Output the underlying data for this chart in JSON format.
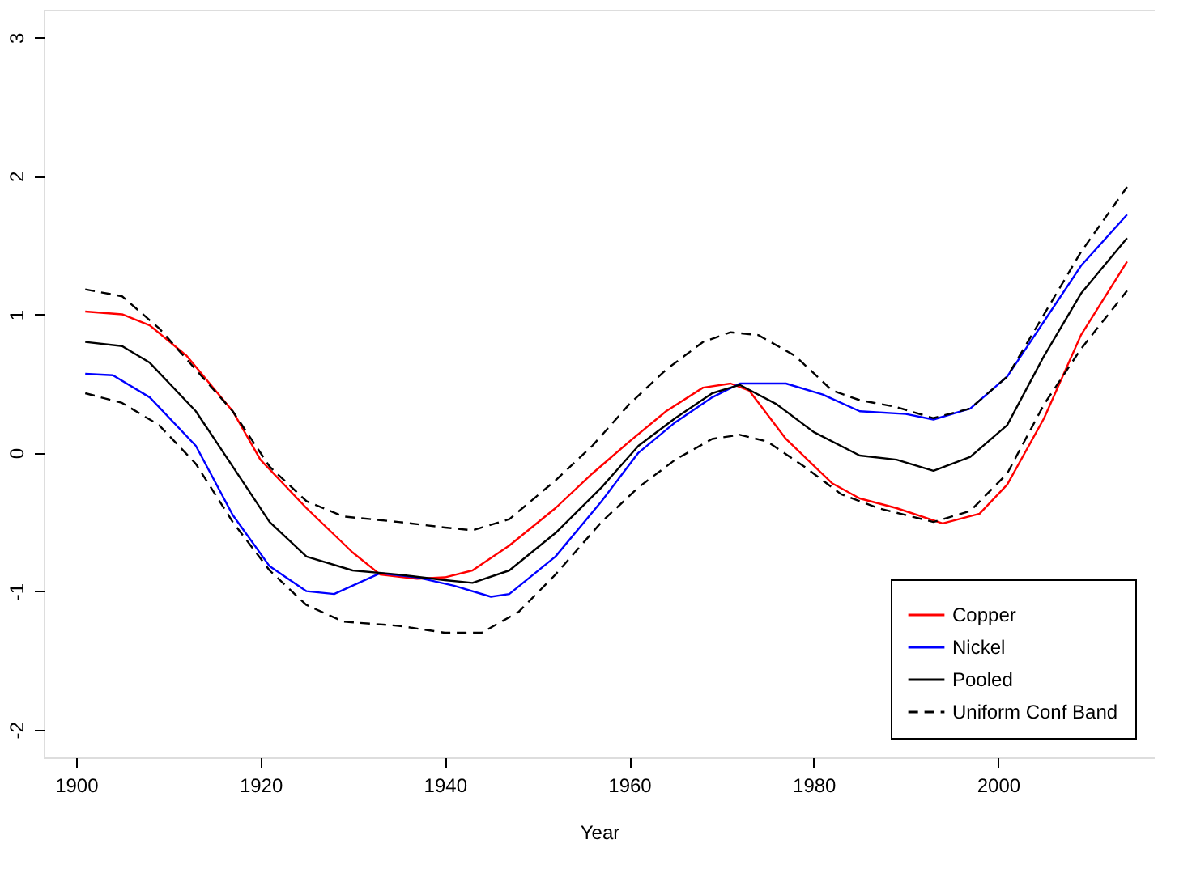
{
  "chart_data": {
    "type": "line",
    "xlabel": "Year",
    "xlim": [
      1896.5,
      2017
    ],
    "xticks": [
      1900,
      1920,
      1940,
      1960,
      1980,
      2000
    ],
    "ylim": [
      -2.2,
      3.2
    ],
    "yticks": [
      -2,
      -1,
      0,
      1,
      2,
      3
    ],
    "grid": false,
    "legend": "bottom right",
    "marker": "none",
    "series": [
      {
        "name": "Copper",
        "color": "#ff0000",
        "line_style": "solid",
        "x": [
          1901,
          1905,
          1908,
          1912,
          1917,
          1920,
          1925,
          1930,
          1933,
          1937,
          1940,
          1943,
          1947,
          1952,
          1956,
          1960,
          1964,
          1968,
          1971,
          1973,
          1977,
          1982,
          1985,
          1989,
          1994,
          1998,
          2001,
          2005,
          2009,
          2014
        ],
        "values": [
          1.02,
          1.0,
          0.92,
          0.7,
          0.3,
          -0.05,
          -0.4,
          -0.72,
          -0.88,
          -0.91,
          -0.9,
          -0.85,
          -0.67,
          -0.4,
          -0.15,
          0.08,
          0.3,
          0.47,
          0.5,
          0.45,
          0.1,
          -0.22,
          -0.33,
          -0.4,
          -0.51,
          -0.44,
          -0.23,
          0.25,
          0.85,
          1.38
        ]
      },
      {
        "name": "Nickel",
        "color": "#0000ff",
        "line_style": "solid",
        "x": [
          1901,
          1904,
          1908,
          1913,
          1917,
          1921,
          1925,
          1928,
          1931,
          1933,
          1937,
          1941,
          1945,
          1947,
          1952,
          1957,
          1961,
          1965,
          1969,
          1972,
          1977,
          1981,
          1985,
          1990,
          1993,
          1997,
          2001,
          2005,
          2009,
          2014
        ],
        "values": [
          0.57,
          0.56,
          0.4,
          0.05,
          -0.45,
          -0.82,
          -1.0,
          -1.02,
          -0.93,
          -0.87,
          -0.9,
          -0.96,
          -1.04,
          -1.02,
          -0.75,
          -0.35,
          0.0,
          0.22,
          0.4,
          0.5,
          0.5,
          0.42,
          0.3,
          0.28,
          0.24,
          0.32,
          0.55,
          0.95,
          1.35,
          1.72
        ]
      },
      {
        "name": "Pooled",
        "color": "#000000",
        "line_style": "solid",
        "x": [
          1901,
          1905,
          1908,
          1913,
          1917,
          1921,
          1925,
          1930,
          1935,
          1940,
          1943,
          1947,
          1952,
          1957,
          1961,
          1965,
          1969,
          1972,
          1976,
          1980,
          1985,
          1989,
          1993,
          1997,
          2001,
          2005,
          2009,
          2014
        ],
        "values": [
          0.8,
          0.77,
          0.65,
          0.3,
          -0.1,
          -0.5,
          -0.75,
          -0.85,
          -0.88,
          -0.92,
          -0.94,
          -0.85,
          -0.58,
          -0.25,
          0.05,
          0.25,
          0.43,
          0.49,
          0.35,
          0.15,
          -0.02,
          -0.05,
          -0.13,
          -0.03,
          0.2,
          0.7,
          1.15,
          1.55
        ]
      },
      {
        "name": "Uniform Conf Band",
        "color": "#000000",
        "line_style": "dashed",
        "x": [
          1901,
          1905,
          1909,
          1913,
          1917,
          1921,
          1925,
          1929,
          1935,
          1940,
          1943,
          1947,
          1952,
          1956,
          1960,
          1964,
          1968,
          1971,
          1974,
          1978,
          1982,
          1985,
          1989,
          1993,
          1997,
          2001,
          2005,
          2009,
          2014
        ],
        "values": [
          1.18,
          1.13,
          0.9,
          0.6,
          0.3,
          -0.1,
          -0.35,
          -0.46,
          -0.5,
          -0.54,
          -0.56,
          -0.48,
          -0.2,
          0.05,
          0.35,
          0.6,
          0.8,
          0.87,
          0.85,
          0.7,
          0.45,
          0.38,
          0.33,
          0.25,
          0.32,
          0.55,
          1.0,
          1.45,
          1.92
        ]
      },
      {
        "color": "#000000",
        "line_style": "dashed",
        "x": [
          1901,
          1905,
          1909,
          1913,
          1917,
          1921,
          1925,
          1929,
          1935,
          1940,
          1944,
          1948,
          1952,
          1957,
          1961,
          1965,
          1969,
          1972,
          1975,
          1979,
          1983,
          1987,
          1993,
          1997,
          2001,
          2005,
          2009,
          2014
        ],
        "values": [
          0.43,
          0.36,
          0.2,
          -0.08,
          -0.5,
          -0.85,
          -1.1,
          -1.22,
          -1.25,
          -1.3,
          -1.3,
          -1.15,
          -0.88,
          -0.5,
          -0.25,
          -0.05,
          0.1,
          0.13,
          0.08,
          -0.1,
          -0.3,
          -0.4,
          -0.5,
          -0.42,
          -0.15,
          0.35,
          0.75,
          1.17
        ]
      }
    ]
  }
}
